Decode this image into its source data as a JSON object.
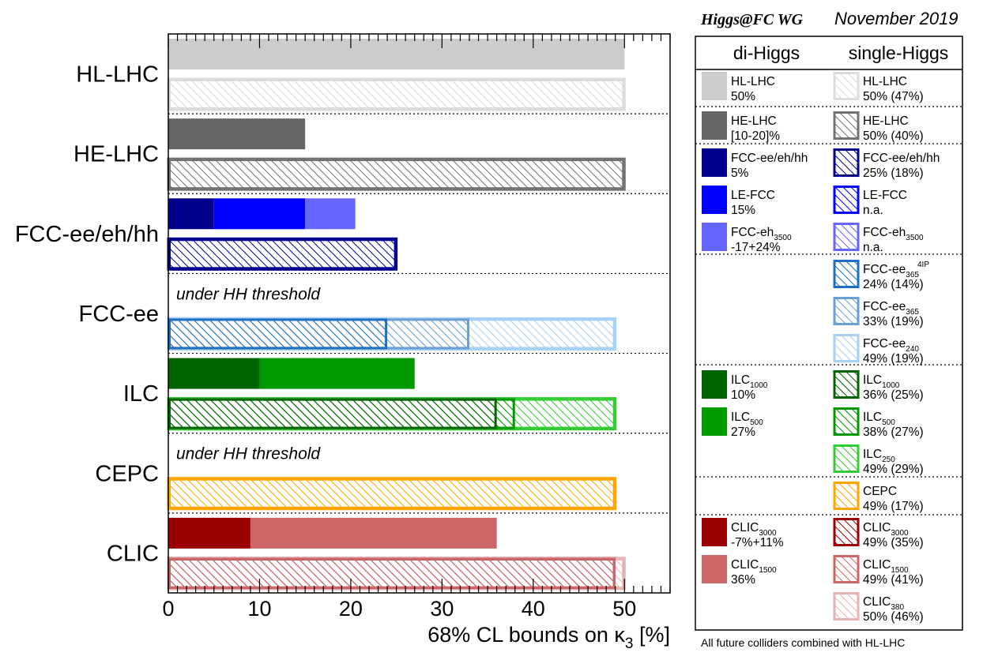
{
  "header": {
    "group": "Higgs@FC WG",
    "date": "November 2019"
  },
  "footnote": "All future colliders combined with HL-LHC",
  "colors": {
    "hl_lhc_di": "#cccccc",
    "hl_lhc_single": "#dcdcdc",
    "he_lhc_di": "#666666",
    "he_lhc_single": "#737373",
    "fcc_hh": "#00008b",
    "le_fcc": "#0000ff",
    "fcc_eh": "#6666ff",
    "fcc_ee_4ip": "#1e6fc4",
    "fcc_ee_365": "#6b9fd4",
    "fcc_ee_240": "#a9d0f5",
    "ilc_1000": "#006400",
    "ilc_500": "#009900",
    "ilc_250": "#33cc33",
    "cepc": "#ffa500",
    "clic_3000": "#990000",
    "clic_1500": "#cc6666",
    "clic_380": "#e6b3b3"
  },
  "chart_data": {
    "type": "bar",
    "orientation": "horizontal",
    "xlabel_prefix": "68% CL bounds on κ",
    "xlabel_sub": "3",
    "xlabel_suffix": " [%]",
    "xlim": [
      0,
      55
    ],
    "xticks": [
      "0",
      "10",
      "20",
      "30",
      "40",
      "50"
    ],
    "xtick_values": [
      0,
      10,
      20,
      30,
      40,
      50
    ],
    "categories": [
      "HL-LHC",
      "HE-LHC",
      "FCC-ee/eh/hh",
      "FCC-ee",
      "ILC",
      "CEPC",
      "CLIC"
    ],
    "annotations": [
      {
        "category": "FCC-ee",
        "text": "under HH threshold"
      },
      {
        "category": "CEPC",
        "text": "under HH threshold"
      }
    ],
    "bars": [
      {
        "category": "HL-LHC",
        "row": "di",
        "segments": [
          {
            "name": "HL-LHC",
            "value": 50,
            "color": "#cccccc",
            "hatched": false
          }
        ]
      },
      {
        "category": "HL-LHC",
        "row": "single",
        "segments": [
          {
            "name": "HL-LHC",
            "value": 50,
            "color": "#dcdcdc",
            "hatched": true
          }
        ]
      },
      {
        "category": "HE-LHC",
        "row": "di",
        "segments": [
          {
            "name": "HE-LHC",
            "value": 15,
            "color": "#666666",
            "hatched": false
          }
        ]
      },
      {
        "category": "HE-LHC",
        "row": "single",
        "segments": [
          {
            "name": "HE-LHC",
            "value": 50,
            "color": "#737373",
            "hatched": true
          }
        ]
      },
      {
        "category": "FCC-ee/eh/hh",
        "row": "di",
        "segments": [
          {
            "name": "FCC-ee/eh/hh",
            "value": 5,
            "color": "#00008b",
            "hatched": false
          },
          {
            "name": "LE-FCC",
            "value": 15,
            "color": "#0000ff",
            "hatched": false
          },
          {
            "name": "FCC-eh3500",
            "value": 20.5,
            "color": "#6666ff",
            "hatched": false
          }
        ]
      },
      {
        "category": "FCC-ee/eh/hh",
        "row": "single",
        "segments": [
          {
            "name": "FCC-ee/eh/hh",
            "value": 25,
            "color": "#00008b",
            "hatched": true
          }
        ]
      },
      {
        "category": "FCC-ee",
        "row": "single",
        "segments": [
          {
            "name": "FCC-ee365 4IP",
            "value": 24,
            "color": "#1e6fc4",
            "hatched": true
          },
          {
            "name": "FCC-ee365",
            "value": 33,
            "color": "#6b9fd4",
            "hatched": true
          },
          {
            "name": "FCC-ee240",
            "value": 49,
            "color": "#a9d0f5",
            "hatched": true
          }
        ]
      },
      {
        "category": "ILC",
        "row": "di",
        "segments": [
          {
            "name": "ILC1000",
            "value": 10,
            "color": "#006400",
            "hatched": false
          },
          {
            "name": "ILC500",
            "value": 27,
            "color": "#009900",
            "hatched": false
          }
        ]
      },
      {
        "category": "ILC",
        "row": "single",
        "segments": [
          {
            "name": "ILC1000",
            "value": 36,
            "color": "#006400",
            "hatched": true
          },
          {
            "name": "ILC500",
            "value": 38,
            "color": "#009900",
            "hatched": true
          },
          {
            "name": "ILC250",
            "value": 49,
            "color": "#33cc33",
            "hatched": true
          }
        ]
      },
      {
        "category": "CEPC",
        "row": "single",
        "segments": [
          {
            "name": "CEPC",
            "value": 49,
            "color": "#ffa500",
            "hatched": true
          }
        ]
      },
      {
        "category": "CLIC",
        "row": "di",
        "segments": [
          {
            "name": "CLIC3000",
            "value": 9,
            "color": "#990000",
            "hatched": false
          },
          {
            "name": "CLIC1500",
            "value": 36,
            "color": "#cc6666",
            "hatched": false
          }
        ]
      },
      {
        "category": "CLIC",
        "row": "single",
        "segments": [
          {
            "name": "CLIC3000",
            "value": 49,
            "color": "#990000",
            "hatched": true
          },
          {
            "name": "CLIC1500",
            "value": 49,
            "color": "#cc6666",
            "hatched": true
          },
          {
            "name": "CLIC380",
            "value": 50,
            "color": "#e6b3b3",
            "hatched": true
          }
        ]
      }
    ]
  },
  "legend": {
    "col_di": "di-Higgs",
    "col_single": "single-Higgs",
    "di": [
      {
        "name": "HL-LHC",
        "sub": "",
        "sup": "",
        "value": "50%",
        "color": "#cccccc"
      },
      {
        "name": "HE-LHC",
        "sub": "",
        "sup": "",
        "value": "[10-20]%",
        "color": "#666666"
      },
      {
        "name": "FCC-ee/eh/hh",
        "sub": "",
        "sup": "",
        "value": "5%",
        "color": "#00008b"
      },
      {
        "name": "LE-FCC",
        "sub": "",
        "sup": "",
        "value": "15%",
        "color": "#0000ff"
      },
      {
        "name": "FCC-eh",
        "sub": "3500",
        "sup": "",
        "value": "-17+24%",
        "color": "#6666ff"
      },
      {
        "name": "ILC",
        "sub": "1000",
        "sup": "",
        "value": "10%",
        "color": "#006400"
      },
      {
        "name": "ILC",
        "sub": "500",
        "sup": "",
        "value": "27%",
        "color": "#009900"
      },
      {
        "name": "CLIC",
        "sub": "3000",
        "sup": "",
        "value": "-7%+11%",
        "color": "#990000"
      },
      {
        "name": "CLIC",
        "sub": "1500",
        "sup": "",
        "value": "36%",
        "color": "#cc6666"
      }
    ],
    "single": [
      {
        "name": "HL-LHC",
        "sub": "",
        "sup": "",
        "value": "50% (47%)",
        "color": "#dcdcdc"
      },
      {
        "name": "HE-LHC",
        "sub": "",
        "sup": "",
        "value": "50% (40%)",
        "color": "#737373"
      },
      {
        "name": "FCC-ee/eh/hh",
        "sub": "",
        "sup": "",
        "value": "25% (18%)",
        "color": "#00008b"
      },
      {
        "name": "LE-FCC",
        "sub": "",
        "sup": "",
        "value": "n.a.",
        "color": "#0000ff"
      },
      {
        "name": "FCC-eh",
        "sub": "3500",
        "sup": "",
        "value": "n.a.",
        "color": "#6666ff"
      },
      {
        "name": "FCC-ee",
        "sub": "365",
        "sup": "4IP",
        "value": "24% (14%)",
        "color": "#1e6fc4"
      },
      {
        "name": "FCC-ee",
        "sub": "365",
        "sup": "",
        "value": "33% (19%)",
        "color": "#6b9fd4"
      },
      {
        "name": "FCC-ee",
        "sub": "240",
        "sup": "",
        "value": "49% (19%)",
        "color": "#a9d0f5"
      },
      {
        "name": "ILC",
        "sub": "1000",
        "sup": "",
        "value": "36% (25%)",
        "color": "#006400"
      },
      {
        "name": "ILC",
        "sub": "500",
        "sup": "",
        "value": "38% (27%)",
        "color": "#009900"
      },
      {
        "name": "ILC",
        "sub": "250",
        "sup": "",
        "value": "49% (29%)",
        "color": "#33cc33"
      },
      {
        "name": "CEPC",
        "sub": "",
        "sup": "",
        "value": "49% (17%)",
        "color": "#ffa500"
      },
      {
        "name": "CLIC",
        "sub": "3000",
        "sup": "",
        "value": "49% (35%)",
        "color": "#990000"
      },
      {
        "name": "CLIC",
        "sub": "1500",
        "sup": "",
        "value": "49% (41%)",
        "color": "#cc6666"
      },
      {
        "name": "CLIC",
        "sub": "380",
        "sup": "",
        "value": "50% (46%)",
        "color": "#e6b3b3"
      }
    ]
  }
}
